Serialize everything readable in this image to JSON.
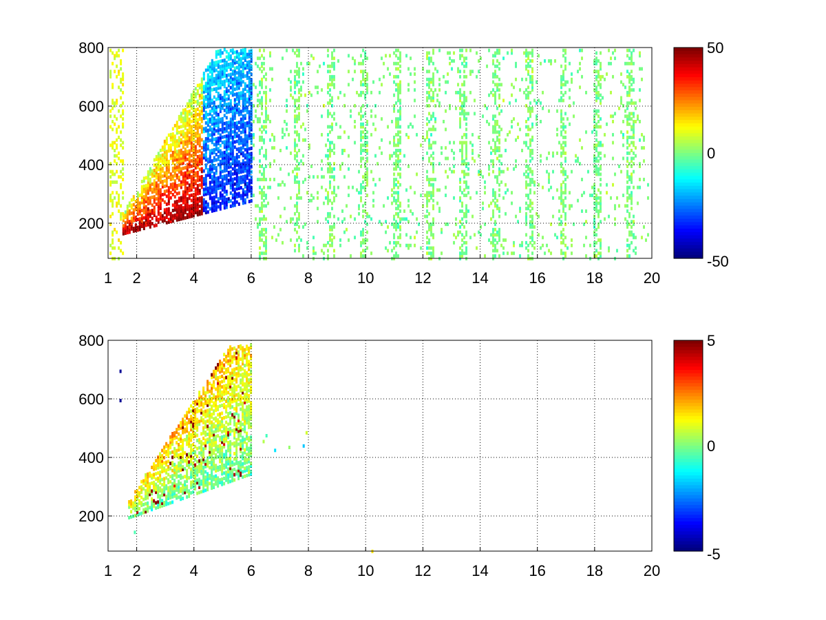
{
  "chart_data": [
    {
      "type": "heatmap",
      "title": "",
      "xlabel": "",
      "ylabel": "",
      "xlim": [
        1,
        20
      ],
      "ylim": [
        80,
        800
      ],
      "x_ticks": [
        "1",
        "2",
        "4",
        "6",
        "8",
        "10",
        "12",
        "14",
        "16",
        "18",
        "20"
      ],
      "y_ticks": [
        "200",
        "400",
        "600",
        "800"
      ],
      "grid": true,
      "colorbar": {
        "colormap": "jet",
        "range": [
          -50,
          50
        ],
        "tick_labels": [
          "50",
          "0",
          "-50"
        ]
      },
      "features": [
        {
          "region": "dense band from x 1.5 to 6, y 200 to 800",
          "values": "positive (~+20 to +50) on lower-left edge near x 2-4, y 250-450; negative (~-20 to -50) near x 4-6, y 280-700"
        },
        {
          "region": "sparse vertical streaks x 6 to 20",
          "values": "near zero (about -10 to +10)"
        }
      ]
    },
    {
      "type": "heatmap",
      "title": "",
      "xlabel": "",
      "ylabel": "",
      "xlim": [
        1,
        20
      ],
      "ylim": [
        80,
        800
      ],
      "x_ticks": [
        "1",
        "2",
        "4",
        "6",
        "8",
        "10",
        "12",
        "14",
        "16",
        "18",
        "20"
      ],
      "y_ticks": [
        "200",
        "400",
        "600",
        "800"
      ],
      "grid": true,
      "colorbar": {
        "colormap": "jet",
        "range": [
          -5,
          5
        ],
        "tick_labels": [
          "5",
          "0",
          "-5"
        ]
      },
      "features": [
        {
          "region": "band from x 1.7 to 6, y 200 to 780",
          "values": "mostly 0 to +3 with scattered +5 spots; lower edge around 0 to -1"
        },
        {
          "region": "few isolated points x 6 to 8 and near x 10, y 85",
          "values": "about -2 to +2"
        }
      ]
    }
  ]
}
